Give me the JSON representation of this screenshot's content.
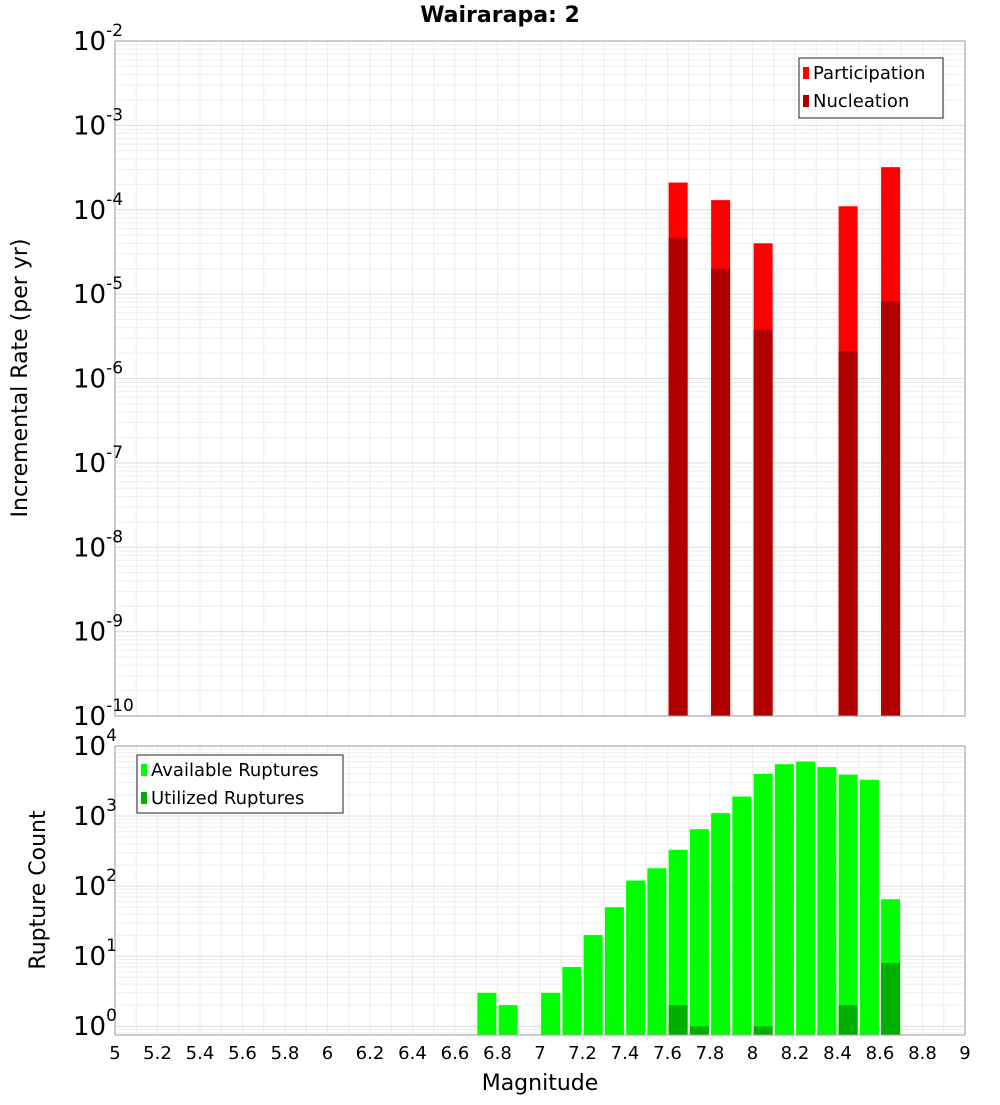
{
  "title": "Wairarapa: 2",
  "x_axis_label": "Magnitude",
  "x_ticks": [
    "5",
    "5.2",
    "5.4",
    "5.6",
    "5.8",
    "6",
    "6.2",
    "6.4",
    "6.6",
    "6.8",
    "7",
    "7.2",
    "7.4",
    "7.6",
    "7.8",
    "8",
    "8.2",
    "8.4",
    "8.6",
    "8.8",
    "9"
  ],
  "chart_data": [
    {
      "type": "bar",
      "ylabel": "Incremental Rate (per yr)",
      "xlabel": "",
      "xlim": [
        5,
        9
      ],
      "ylim": [
        1e-10,
        0.01
      ],
      "y_scale": "log",
      "grid": true,
      "legend_position": "top-right",
      "y_tick_exponents": [
        -10,
        -9,
        -8,
        -7,
        -6,
        -5,
        -4,
        -3,
        -2
      ],
      "x": [
        7.65,
        7.85,
        8.05,
        8.45,
        8.65
      ],
      "series": [
        {
          "name": "Participation",
          "color": "#ff0000",
          "values": [
            0.00021,
            0.00013,
            4e-05,
            0.00011,
            0.00032
          ]
        },
        {
          "name": "Nucleation",
          "color": "#b00000",
          "values": [
            4.6e-05,
            2e-05,
            3.8e-06,
            2.1e-06,
            8.2e-06
          ]
        }
      ]
    },
    {
      "type": "bar",
      "ylabel": "Rupture Count",
      "xlabel": "Magnitude",
      "xlim": [
        5,
        9
      ],
      "ylim": [
        0.75,
        10000
      ],
      "y_scale": "log",
      "grid": true,
      "legend_position": "top-left",
      "y_tick_exponents": [
        0,
        1,
        2,
        3,
        4
      ],
      "x": [
        6.75,
        6.85,
        6.95,
        7.05,
        7.15,
        7.25,
        7.35,
        7.45,
        7.55,
        7.65,
        7.75,
        7.85,
        7.95,
        8.05,
        8.15,
        8.25,
        8.35,
        8.45,
        8.55,
        8.65
      ],
      "series": [
        {
          "name": "Available Ruptures",
          "color": "#00ff00",
          "values": [
            3,
            2,
            0,
            3,
            7,
            20,
            50,
            120,
            180,
            330,
            650,
            1100,
            1900,
            4000,
            5500,
            6000,
            5000,
            3900,
            3300,
            65
          ]
        },
        {
          "name": "Utilized Ruptures",
          "color": "#00b000",
          "values": [
            0,
            0,
            0,
            0,
            0,
            0,
            0,
            0,
            0,
            2,
            1,
            0,
            0,
            1,
            0,
            0,
            0,
            2,
            0,
            8
          ]
        }
      ]
    }
  ]
}
